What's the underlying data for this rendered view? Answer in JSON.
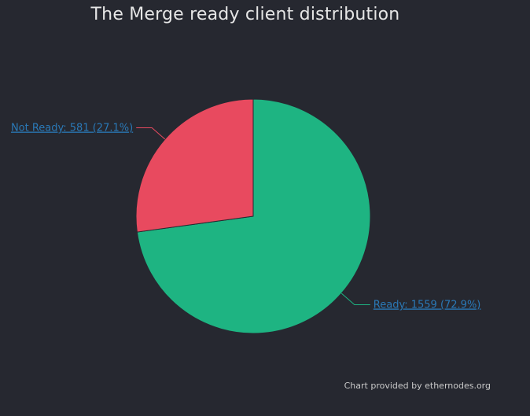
{
  "chart_data": {
    "type": "pie",
    "title": "The Merge ready client distribution",
    "slices": [
      {
        "name": "Ready",
        "value": 1559,
        "percent": 72.9,
        "color": "#1eb482",
        "label": "Ready: 1559 (72.9%)"
      },
      {
        "name": "Not Ready",
        "value": 581,
        "percent": 27.1,
        "color": "#e84a5f",
        "label": "Not Ready: 581 (27.1%)"
      }
    ],
    "start": "12 o'clock",
    "direction": "clockwise"
  },
  "credit": "Chart provided by ethernodes.org",
  "colors": {
    "background": "#262830",
    "label_link": "#2a79b7"
  }
}
